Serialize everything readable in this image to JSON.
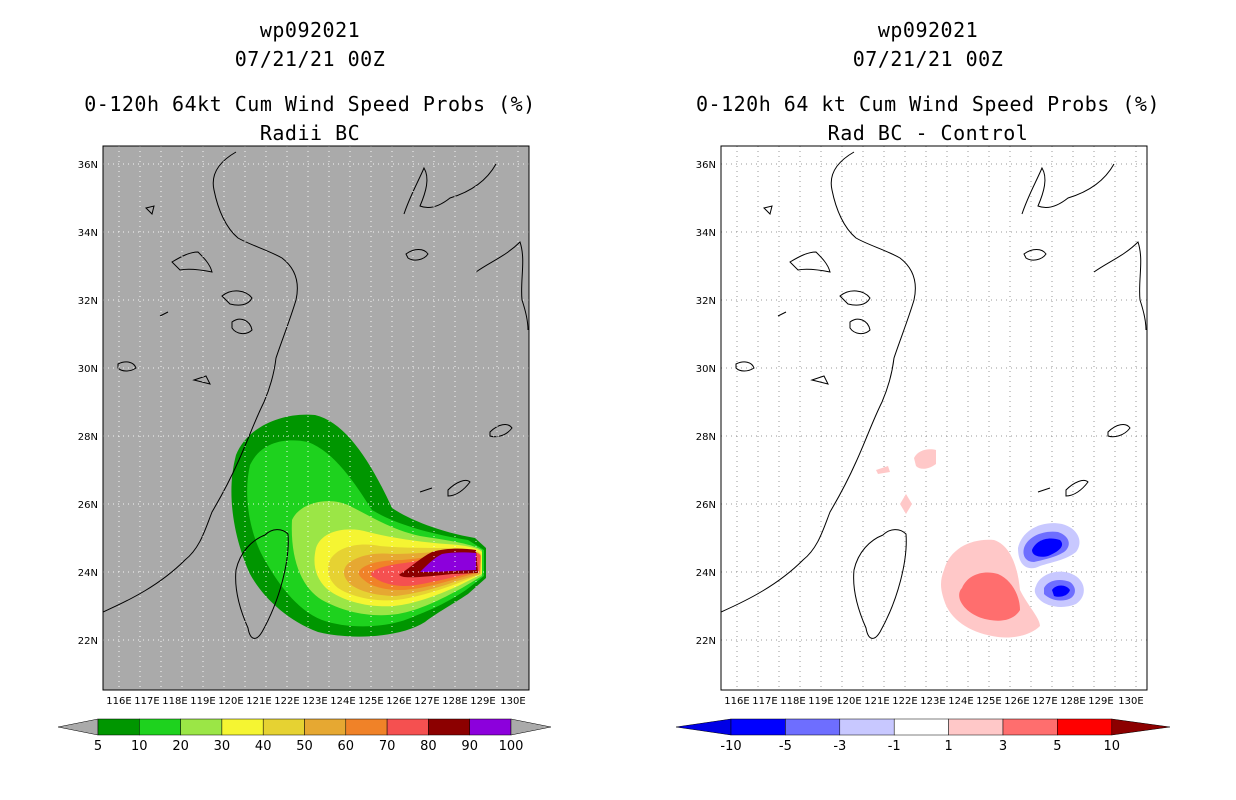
{
  "left_panel": {
    "storm_id": "wp092021",
    "date": "07/21/21 00Z",
    "product": "0-120h 64kt Cum Wind Speed Probs (%)",
    "subtitle": "Radii BC",
    "colorbar": {
      "colors": [
        "#009600",
        "#1ed21e",
        "#9be646",
        "#f5f532",
        "#e6d232",
        "#e6a832",
        "#f08228",
        "#f55050",
        "#8c0000",
        "#8c00dc"
      ],
      "labels": [
        "5",
        "10",
        "20",
        "30",
        "40",
        "50",
        "60",
        "70",
        "80",
        "90",
        "100"
      ]
    }
  },
  "right_panel": {
    "storm_id": "wp092021",
    "date": "07/21/21 00Z",
    "product": "0-120h 64 kt Cum Wind Speed Probs (%)",
    "subtitle": "Rad BC - Control",
    "colorbar": {
      "colors": [
        "#0000e6",
        "#0000ff",
        "#6e6eff",
        "#c8c8ff",
        "#ffffff",
        "#ffc8c8",
        "#ff6e6e",
        "#ff0000",
        "#8c0000"
      ],
      "labels": [
        "-10",
        "-5",
        "-3",
        "-1",
        "1",
        "3",
        "5",
        "10"
      ]
    }
  },
  "map": {
    "lat_labels": [
      "36N",
      "34N",
      "32N",
      "30N",
      "28N",
      "26N",
      "24N",
      "22N"
    ],
    "lon_labels": [
      "116E",
      "117E",
      "118E",
      "119E",
      "120E",
      "121E",
      "122E",
      "123E",
      "124E",
      "125E",
      "126E",
      "127E",
      "128E",
      "129E",
      "130E"
    ],
    "land_color_left": "#aaaaaa"
  }
}
